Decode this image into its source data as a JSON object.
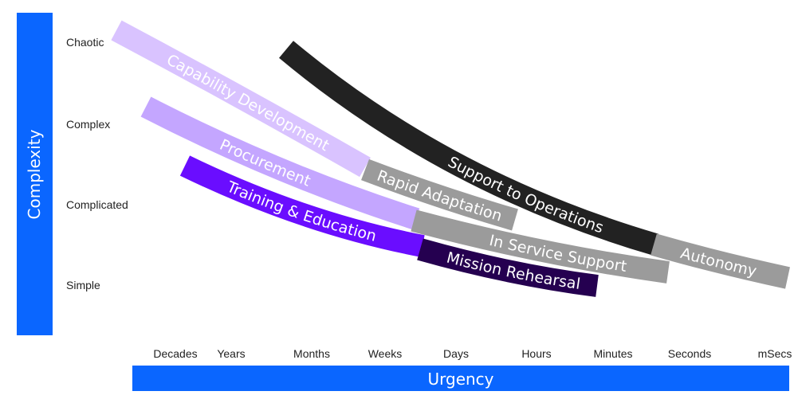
{
  "y_axis": {
    "title": "Complexity",
    "ticks": [
      "Chaotic",
      "Complex",
      "Complicated",
      "Simple"
    ]
  },
  "x_axis": {
    "title": "Urgency",
    "ticks": [
      "Decades",
      "Years",
      "Months",
      "Weeks",
      "Days",
      "Hours",
      "Minutes",
      "Seconds",
      "mSecs"
    ]
  },
  "colors": {
    "axis_bar": "#0a66ff",
    "capability": "#d9c3ff",
    "procurement": "#c4a6ff",
    "training": "#6a0dff",
    "mission": "#250050",
    "grey": "#9b9b9b",
    "support": "#222222"
  },
  "bands": [
    {
      "label": "Capability Development",
      "color": "#d9c3ff"
    },
    {
      "label": "Procurement",
      "color": "#c4a6ff"
    },
    {
      "label": "Training & Education",
      "color": "#6a0dff"
    },
    {
      "label": "Rapid Adaptation",
      "color": "#9b9b9b"
    },
    {
      "label": "In Service Support",
      "color": "#9b9b9b"
    },
    {
      "label": "Mission Rehearsal",
      "color": "#250050"
    },
    {
      "label": "Support to Operations",
      "color": "#222222"
    },
    {
      "label": "Autonomy",
      "color": "#9b9b9b"
    }
  ]
}
